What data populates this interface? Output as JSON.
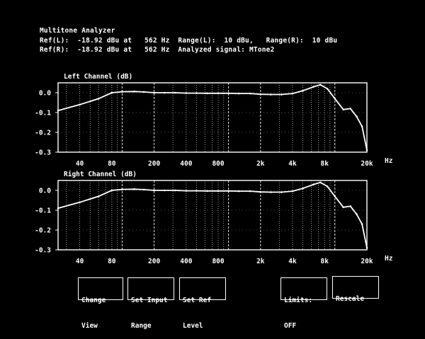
{
  "header": {
    "title": "Multitone Analyzer",
    "line1": "Ref(L):  -18.92 dBu at   562 Hz  Range(L):  10 dBu,   Range(R):  10 dBu",
    "line2": "Ref(R):  -18.92 dBu at   562 Hz  Analyzed signal: MTone2"
  },
  "colors": {
    "background": "#000000",
    "foreground": "#ffffff"
  },
  "chart_data": [
    {
      "type": "line",
      "title": "Left Channel (dB)",
      "xscale": "log",
      "xlabel": "Hz",
      "xlim": [
        25,
        20000
      ],
      "ylim": [
        -0.3,
        0.05
      ],
      "xticks": [
        40,
        80,
        200,
        400,
        800,
        2000,
        4000,
        8000,
        20000
      ],
      "xtick_labels": [
        "40",
        "80",
        "200",
        "400",
        "800",
        "2k",
        "4k",
        "8k",
        "20k"
      ],
      "yticks": [
        0.0,
        -0.1,
        -0.2,
        -0.3
      ],
      "ytick_labels": [
        "0.0",
        "-0.1",
        "-0.2",
        "-0.3"
      ],
      "grid": true,
      "x": [
        25,
        40,
        60,
        80,
        100,
        130,
        160,
        200,
        250,
        315,
        400,
        500,
        630,
        800,
        1000,
        1250,
        1600,
        2000,
        2500,
        3150,
        4000,
        5000,
        6300,
        7300,
        8500,
        10000,
        12000,
        14000,
        16000,
        18000,
        20000
      ],
      "y": [
        -0.09,
        -0.06,
        -0.03,
        0.0,
        0.005,
        0.006,
        0.004,
        0.0,
        0.0,
        0.0,
        -0.002,
        -0.002,
        -0.003,
        -0.003,
        -0.003,
        -0.004,
        -0.004,
        -0.008,
        -0.009,
        -0.009,
        -0.004,
        0.01,
        0.03,
        0.04,
        0.02,
        -0.03,
        -0.085,
        -0.08,
        -0.12,
        -0.17,
        -0.29
      ]
    },
    {
      "type": "line",
      "title": "Right Channel (dB)",
      "xscale": "log",
      "xlabel": "Hz",
      "xlim": [
        25,
        20000
      ],
      "ylim": [
        -0.3,
        0.05
      ],
      "xticks": [
        40,
        80,
        200,
        400,
        800,
        2000,
        4000,
        8000,
        20000
      ],
      "xtick_labels": [
        "40",
        "80",
        "200",
        "400",
        "800",
        "2k",
        "4k",
        "8k",
        "20k"
      ],
      "yticks": [
        0.0,
        -0.1,
        -0.2,
        -0.3
      ],
      "ytick_labels": [
        "0.0",
        "-0.1",
        "-0.2",
        "-0.3"
      ],
      "grid": true,
      "x": [
        25,
        40,
        60,
        80,
        100,
        130,
        160,
        200,
        250,
        315,
        400,
        500,
        630,
        800,
        1000,
        1250,
        1600,
        2000,
        2500,
        3150,
        4000,
        5000,
        6300,
        7300,
        8500,
        10000,
        12000,
        14000,
        16000,
        18000,
        20000
      ],
      "y": [
        -0.09,
        -0.06,
        -0.03,
        0.0,
        0.005,
        0.006,
        0.004,
        0.0,
        0.0,
        0.0,
        -0.002,
        -0.002,
        -0.003,
        -0.003,
        -0.003,
        -0.004,
        -0.004,
        -0.008,
        -0.009,
        -0.009,
        -0.004,
        0.01,
        0.03,
        0.04,
        0.02,
        -0.03,
        -0.085,
        -0.08,
        -0.12,
        -0.17,
        -0.29
      ]
    }
  ],
  "buttons": [
    {
      "line1": "Change",
      "line2": "View"
    },
    {
      "line1": "Set Input",
      "line2": "Range"
    },
    {
      "line1": "Set Ref",
      "line2": "Level"
    },
    {
      "line1": "Limits:",
      "line2": "OFF"
    },
    {
      "line1": "Rescale",
      "line2": ""
    }
  ]
}
